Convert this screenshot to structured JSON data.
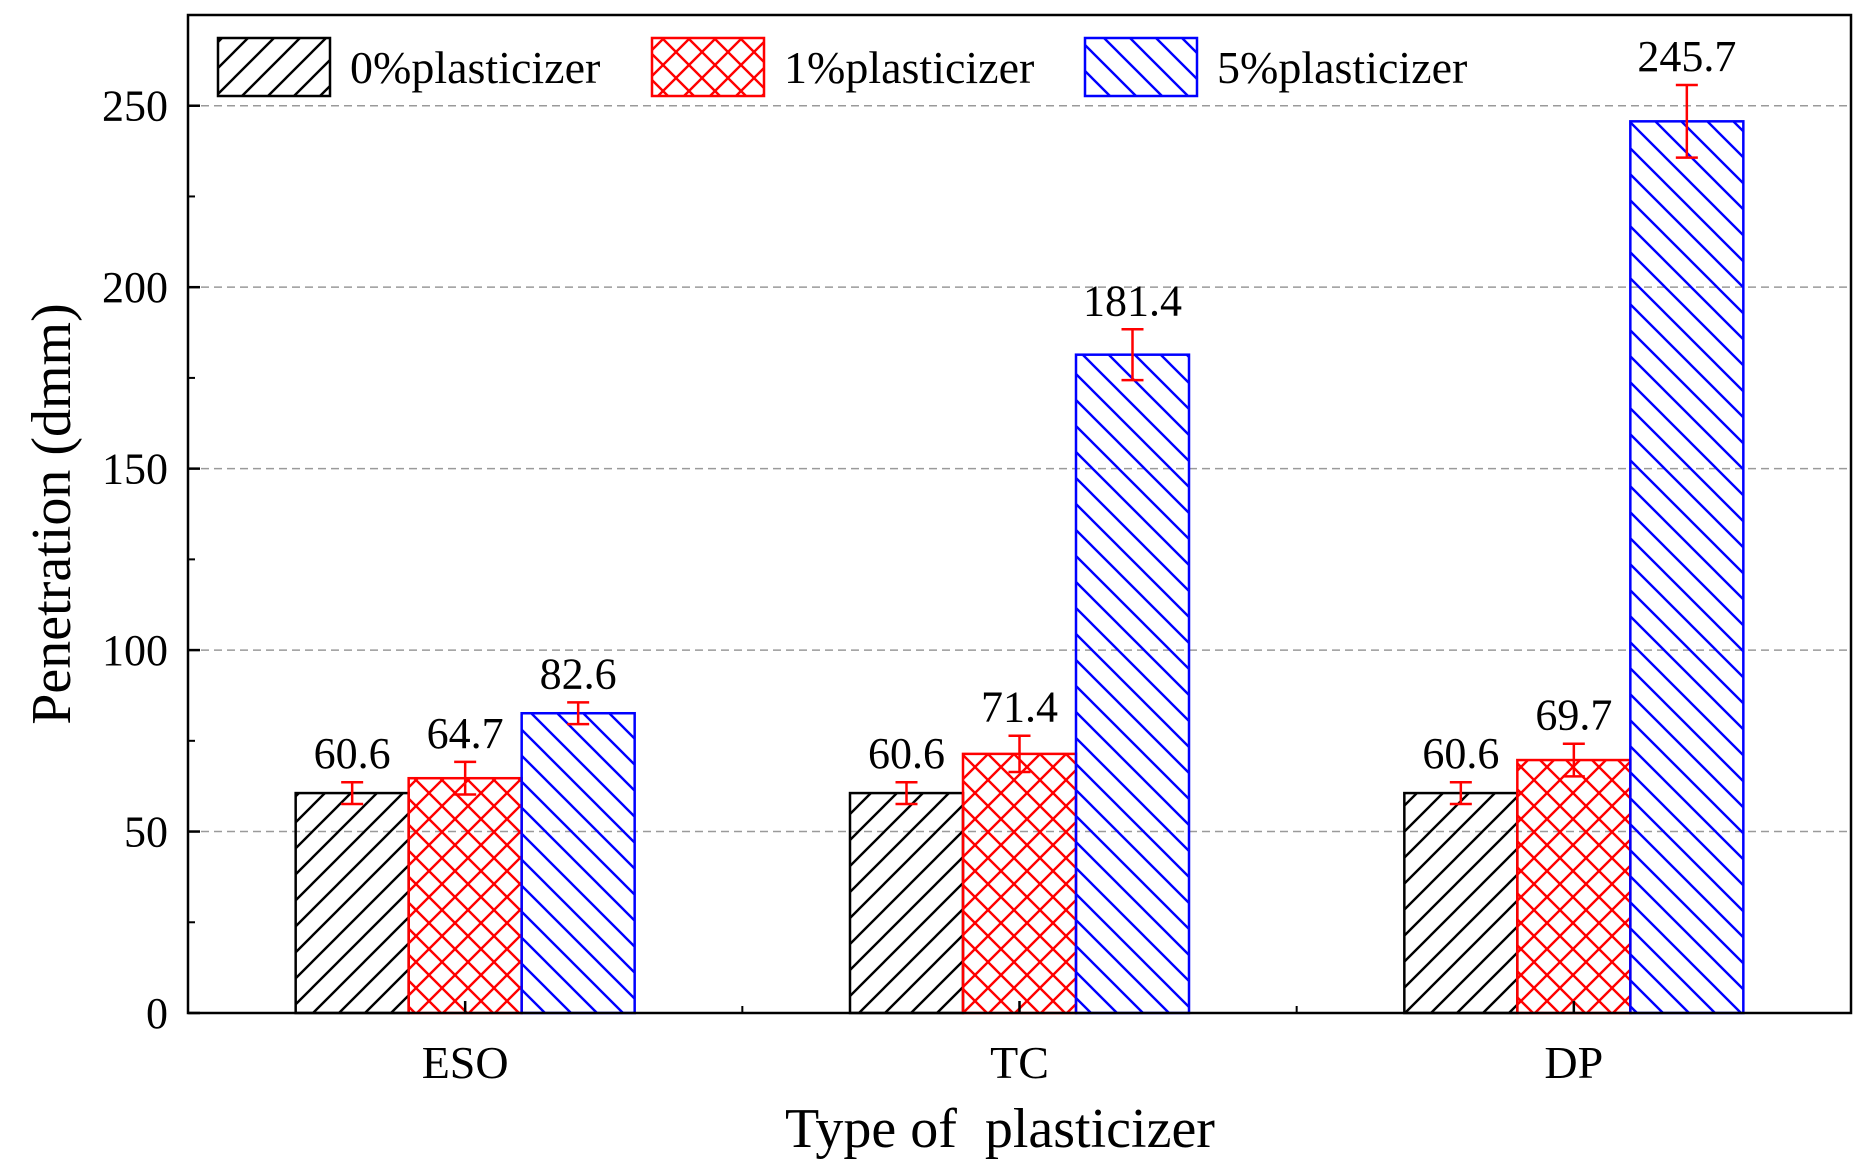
{
  "chart_data": {
    "type": "bar",
    "title": "",
    "xlabel": "Type of  plasticizer",
    "ylabel": "Penetration (dmm)",
    "categories": [
      "ESO",
      "TC",
      "DP"
    ],
    "ylim": [
      0,
      275
    ],
    "yticks": [
      0,
      50,
      100,
      150,
      200,
      250
    ],
    "grid": true,
    "legend_position": "top-left",
    "series": [
      {
        "name": "0%plasticizer",
        "values": [
          60.6,
          60.6,
          60.6
        ],
        "errors": [
          3,
          3,
          3
        ],
        "color": "#000000",
        "pattern": "diagonal-up"
      },
      {
        "name": "1%plasticizer",
        "values": [
          64.7,
          71.4,
          69.7
        ],
        "errors": [
          4.5,
          5,
          4.5
        ],
        "color": "#ff0000",
        "pattern": "crosshatch"
      },
      {
        "name": "5%plasticizer",
        "values": [
          82.6,
          181.4,
          245.7
        ],
        "errors": [
          3,
          7,
          10
        ],
        "color": "#0000ff",
        "pattern": "diagonal-down"
      }
    ],
    "error_bar_color": "#ff0000",
    "value_labels": [
      [
        "60.6",
        "60.6",
        "60.6"
      ],
      [
        "64.7",
        "71.4",
        "69.7"
      ],
      [
        "82.6",
        "181.4",
        "245.7"
      ]
    ]
  }
}
